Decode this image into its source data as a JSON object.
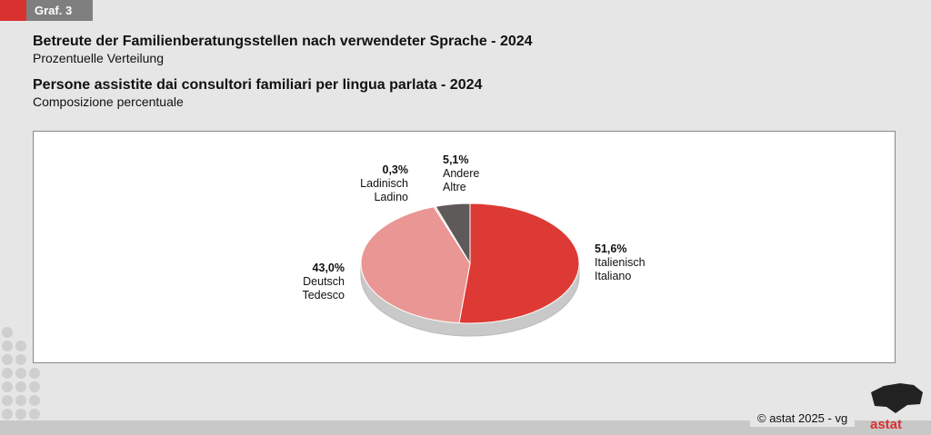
{
  "tag": "Graf. 3",
  "title_de": "Betreute der Familienberatungsstellen nach verwendeter Sprache - 2024",
  "subtitle_de": "Prozentuelle Verteilung",
  "title_it": "Persone assistite dai consultori familiari per lingua parlata - 2024",
  "subtitle_it": "Composizione percentuale",
  "copyright": "© astat 2025 - vg",
  "logo_text": "astat",
  "chart_data": {
    "type": "pie",
    "title": "Betreute der Familienberatungsstellen nach verwendeter Sprache - 2024 / Persone assistite dai consultori familiari per lingua parlata - 2024",
    "slices": [
      {
        "value": 51.6,
        "pct": "51,6%",
        "de": "Italienisch",
        "it": "Italiano",
        "color": "#dd3a35"
      },
      {
        "value": 43.0,
        "pct": "43,0%",
        "de": "Deutsch",
        "it": "Tedesco",
        "color": "#e99694"
      },
      {
        "value": 0.3,
        "pct": "0,3%",
        "de": "Ladinisch",
        "it": "Ladino",
        "color": "#f2c9c8"
      },
      {
        "value": 5.1,
        "pct": "5,1%",
        "de": "Andere",
        "it": "Altre",
        "color": "#5e5a59"
      }
    ]
  }
}
